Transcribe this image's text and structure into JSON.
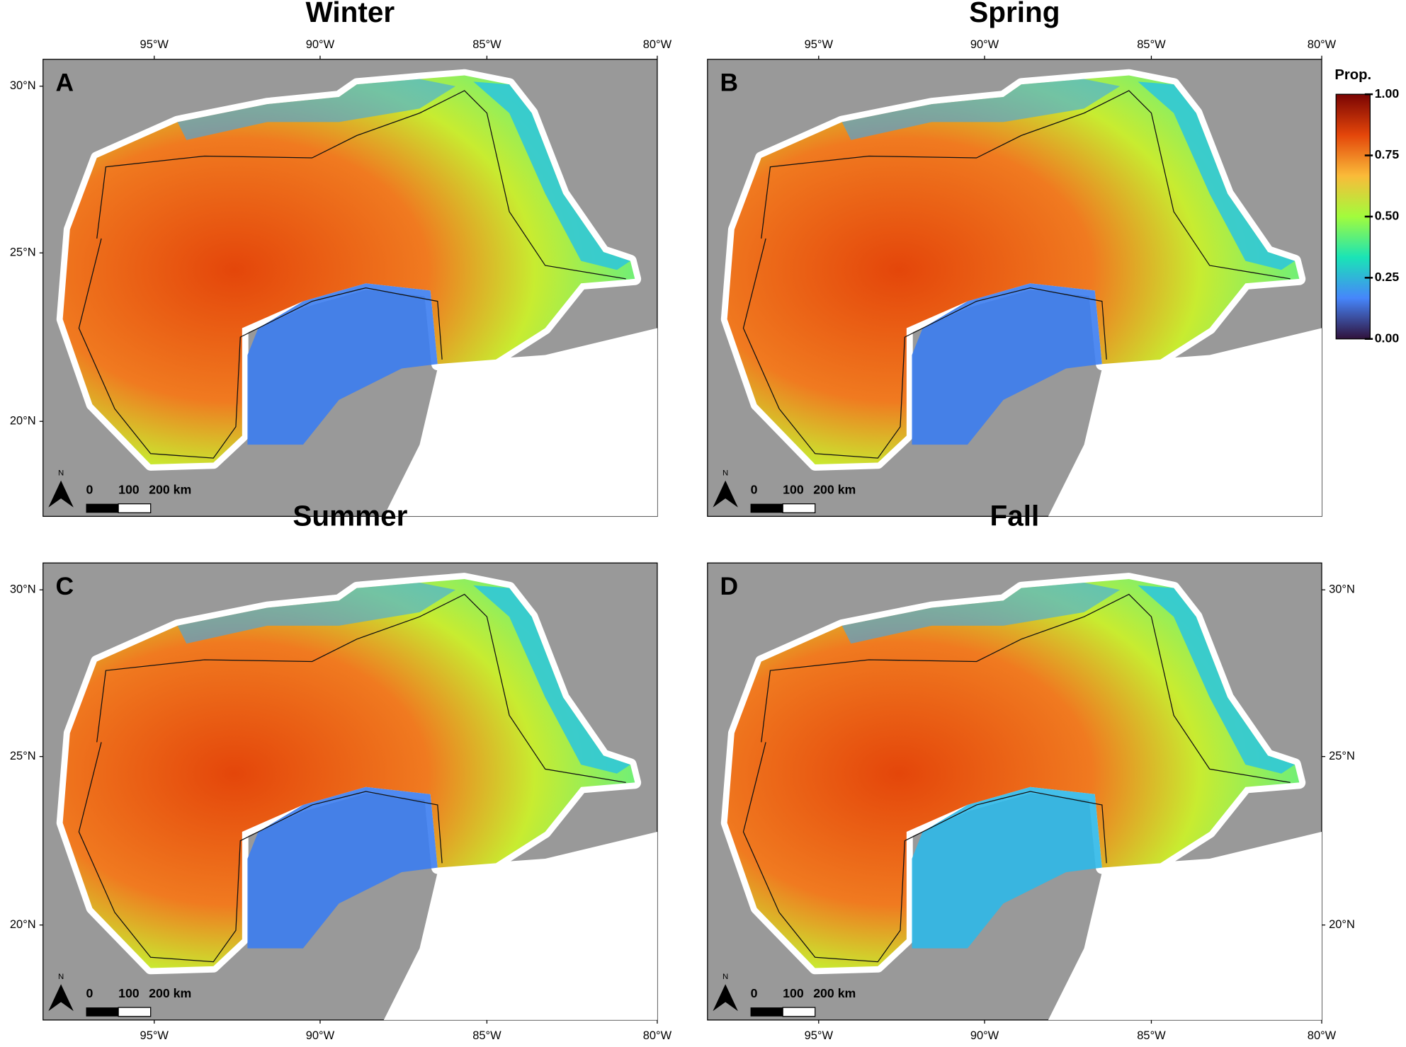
{
  "panels": [
    {
      "letter": "A",
      "title": "Winter"
    },
    {
      "letter": "B",
      "title": "Spring"
    },
    {
      "letter": "C",
      "title": "Summer"
    },
    {
      "letter": "D",
      "title": "Fall"
    }
  ],
  "lon_labels": [
    "95°W",
    "90°W",
    "85°W",
    "80°W"
  ],
  "lat_labels": [
    "30°N",
    "25°N",
    "20°N"
  ],
  "scale_bar": {
    "labels": [
      "0",
      "100",
      "200 km"
    ],
    "north": "N"
  },
  "colorbar": {
    "title": "Prop.",
    "colors": [
      "#30123b",
      "#4686fb",
      "#1ae4b6",
      "#a2fc3c",
      "#fabb39",
      "#e4460a",
      "#7a0403"
    ],
    "ticks": [
      {
        "value": 0,
        "label": "0.00"
      },
      {
        "value": 0.25,
        "label": "0.25"
      },
      {
        "value": 0.5,
        "label": "0.50"
      },
      {
        "value": 0.75,
        "label": "0.75"
      },
      {
        "value": 1,
        "label": "1.00"
      }
    ],
    "range": [
      0,
      1
    ]
  }
}
